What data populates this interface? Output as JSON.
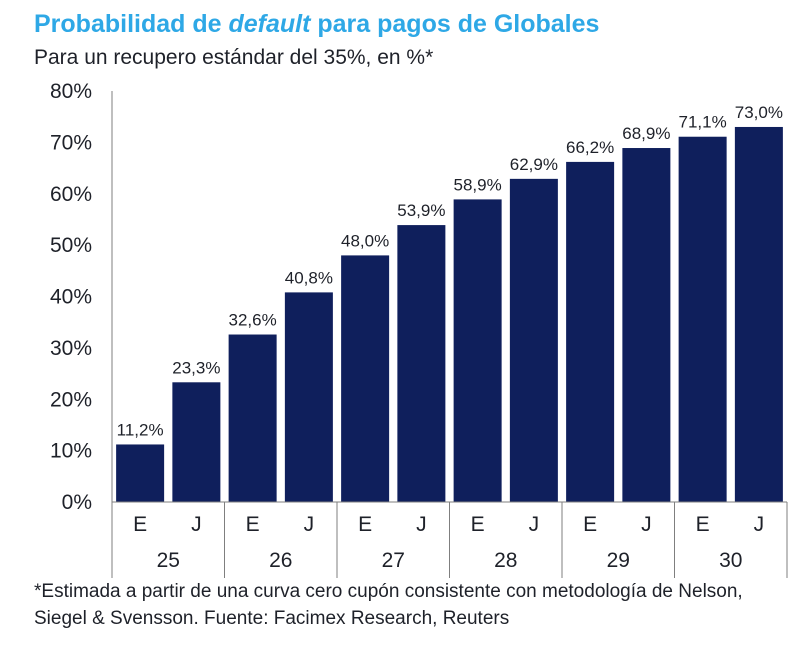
{
  "title": {
    "before": "Probabilidad de ",
    "italic": "default",
    "after": " para pagos de Globales"
  },
  "subtitle": "Para un recupero estándar del 35%, en %*",
  "footnote": "*Estimada a partir de una curva cero cupón consistente con metodología de Nelson, Siegel & Svensson. Fuente: Facimex Research, Reuters",
  "colors": {
    "title": "#2ea8e6",
    "bar": "#0f1f5c",
    "text": "#1e2129",
    "axis": "#7f7f7f"
  },
  "chart_data": {
    "type": "bar",
    "title": "Probabilidad de default para pagos de Globales",
    "subtitle": "Para un recupero estándar del 35%, en %*",
    "ylim": [
      0,
      80
    ],
    "yticks": [
      0,
      10,
      20,
      30,
      40,
      50,
      60,
      70,
      80
    ],
    "ytick_labels": [
      "0%",
      "10%",
      "20%",
      "30%",
      "40%",
      "50%",
      "60%",
      "70%",
      "80%"
    ],
    "groups": [
      "25",
      "26",
      "27",
      "28",
      "29",
      "30"
    ],
    "subcategories": [
      "E",
      "J"
    ],
    "categories": [
      "E 25",
      "J 25",
      "E 26",
      "J 26",
      "E 27",
      "J 27",
      "E 28",
      "J 28",
      "E 29",
      "J 29",
      "E 30",
      "J 30"
    ],
    "values": [
      11.2,
      23.3,
      32.6,
      40.8,
      48.0,
      53.9,
      58.9,
      62.9,
      66.2,
      68.9,
      71.1,
      73.0
    ],
    "value_labels": [
      "11,2%",
      "23,3%",
      "32,6%",
      "40,8%",
      "48,0%",
      "53,9%",
      "58,9%",
      "62,9%",
      "66,2%",
      "68,9%",
      "71,1%",
      "73,0%"
    ]
  }
}
